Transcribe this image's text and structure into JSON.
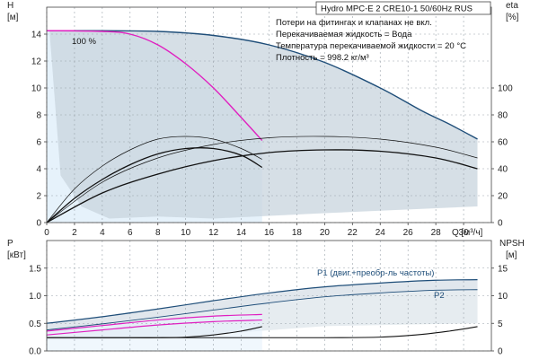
{
  "title": "Hydro MPC-E 2 CRE10-1 50/60Hz RUS",
  "notes": [
    "Потери на фитингах и клапанах не вкл.",
    "Перекачиваемая жидкость = Вода",
    "Температура перекачиваемой жидкости = 20 °C",
    "Плотность = 998.2 кг/м³"
  ],
  "speed_label": "100 %",
  "colors": {
    "max_curve": "#1f4e79",
    "duty_curve": "#e020c0",
    "area_fill": "#c8d4de",
    "light_area": "#e6f2fb",
    "eff_curve": "#111111",
    "power_upper": "#1f4e79"
  },
  "chart_data": [
    {
      "type": "line",
      "name_in_image": "upper",
      "xlabel": "Q [м³/ч]",
      "ylabel_left_name": "H",
      "ylabel_left_unit": "[м]",
      "ylabel_right_name": "eta",
      "ylabel_right_unit": "[%]",
      "xlim": [
        0,
        32
      ],
      "ylim": [
        0,
        16
      ],
      "y2lim": [
        0,
        160
      ],
      "xticks": [
        0,
        2,
        4,
        6,
        8,
        10,
        12,
        14,
        16,
        18,
        20,
        22,
        24,
        26,
        28,
        30
      ],
      "yticks": [
        0,
        2,
        4,
        6,
        8,
        10,
        12,
        14
      ],
      "y2ticks": [
        0,
        20,
        40,
        60,
        80,
        100
      ],
      "grid": true,
      "head_max": {
        "x": [
          0,
          4,
          8,
          12,
          16,
          20,
          24,
          27,
          29,
          31
        ],
        "y": [
          14.25,
          14.25,
          14.2,
          13.9,
          13.2,
          11.9,
          10.0,
          8.3,
          7.3,
          6.2
        ]
      },
      "head_duty": {
        "x": [
          0,
          4,
          6,
          8,
          10,
          12,
          14,
          15.5
        ],
        "y": [
          14.25,
          14.2,
          14.0,
          13.2,
          11.8,
          10.0,
          7.8,
          6.1
        ]
      },
      "eff_single": [
        {
          "x": [
            0,
            2,
            4,
            6,
            8,
            10,
            12,
            14,
            15.5
          ],
          "y": [
            0,
            25,
            42,
            54,
            62,
            64,
            62,
            55,
            47
          ]
        },
        {
          "x": [
            0,
            2,
            4,
            6,
            8,
            10,
            12,
            14,
            15.5
          ],
          "y": [
            0,
            18,
            32,
            43,
            51,
            55,
            55,
            50,
            41
          ]
        }
      ],
      "eff_dual": [
        {
          "x": [
            0,
            4,
            8,
            12,
            16,
            20,
            24,
            28,
            31
          ],
          "y": [
            0,
            30,
            48,
            58,
            63,
            64,
            62,
            56,
            48
          ]
        },
        {
          "x": [
            0,
            4,
            8,
            12,
            16,
            20,
            24,
            28,
            31
          ],
          "y": [
            0,
            22,
            36,
            46,
            52,
            54,
            53,
            48,
            40
          ]
        }
      ]
    },
    {
      "type": "line",
      "name_in_image": "lower",
      "xlabel": "",
      "ylabel_left_name": "P",
      "ylabel_left_unit": "[кВт]",
      "ylabel_right_name": "NPSH",
      "ylabel_right_unit": "[м]",
      "xlim": [
        0,
        32
      ],
      "ylim": [
        0,
        2.0
      ],
      "y2lim": [
        0,
        20
      ],
      "yticks": [
        0.0,
        0.5,
        1.0,
        1.5
      ],
      "y2ticks": [
        0,
        5,
        10,
        15
      ],
      "grid": true,
      "series": [
        {
          "name": "P1 (двиг.+преобр-ль частоты)",
          "x": [
            0,
            4,
            8,
            12,
            16,
            20,
            24,
            28,
            31
          ],
          "y": [
            0.5,
            0.62,
            0.76,
            0.91,
            1.05,
            1.16,
            1.23,
            1.28,
            1.29
          ]
        },
        {
          "name": "P2",
          "x": [
            0,
            4,
            8,
            12,
            16,
            20,
            24,
            28,
            31
          ],
          "y": [
            0.38,
            0.49,
            0.61,
            0.74,
            0.87,
            0.98,
            1.05,
            1.1,
            1.11
          ]
        }
      ],
      "power_duty": [
        {
          "x": [
            0,
            4,
            8,
            12,
            15.5
          ],
          "y": [
            0.36,
            0.46,
            0.56,
            0.63,
            0.66
          ]
        },
        {
          "x": [
            0,
            4,
            8,
            12,
            15.5
          ],
          "y": [
            0.29,
            0.38,
            0.47,
            0.53,
            0.56
          ]
        }
      ],
      "npsh": [
        {
          "x": [
            0,
            6,
            8,
            10,
            12,
            14,
            15.5
          ],
          "y": [
            2.4,
            2.4,
            2.4,
            2.5,
            2.9,
            3.6,
            4.4
          ]
        },
        {
          "x": [
            0,
            12,
            20,
            24,
            27,
            29,
            31
          ],
          "y": [
            2.4,
            2.4,
            2.4,
            2.5,
            3.0,
            3.6,
            4.4
          ]
        }
      ]
    }
  ]
}
